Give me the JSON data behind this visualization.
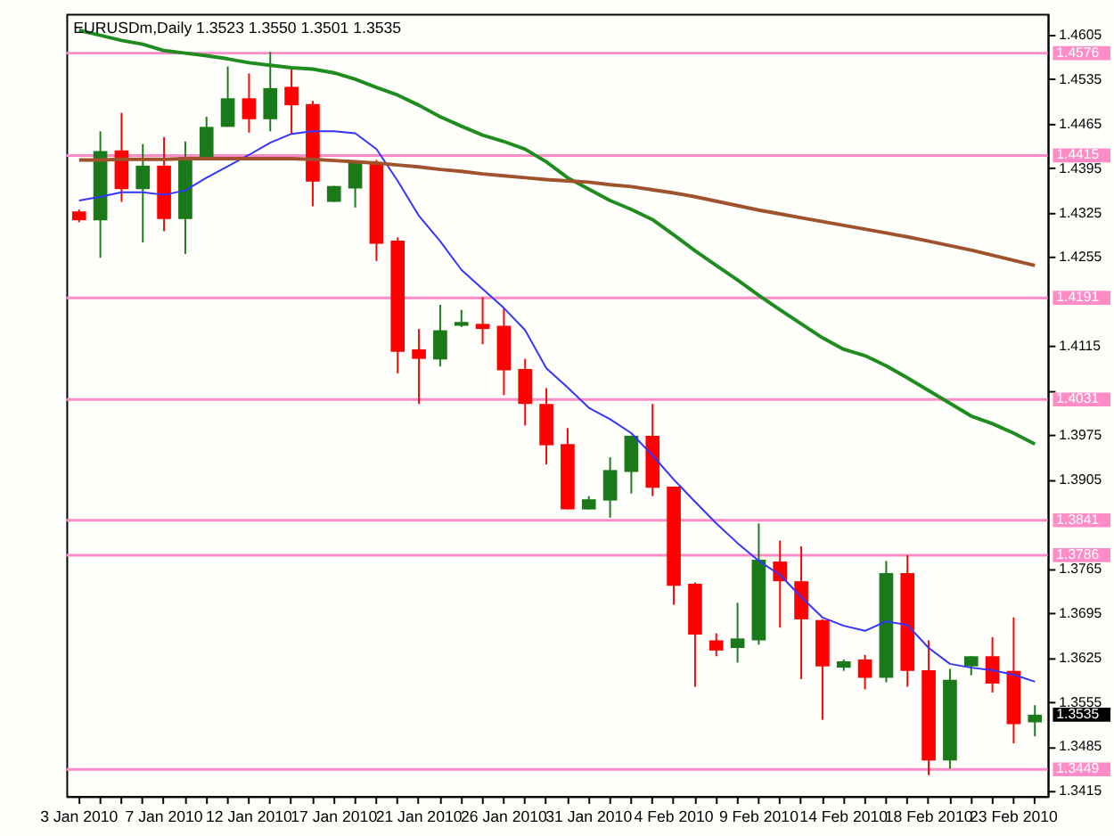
{
  "chart_data": {
    "type": "candlestick",
    "title": "EURUSDm,Daily  1.3523 1.3550 1.3501 1.3535",
    "categories": [
      "3 Jan 2010",
      null,
      null,
      null,
      "7 Jan 2010",
      null,
      null,
      null,
      "12 Jan 2010",
      null,
      null,
      null,
      "17 Jan 2010",
      null,
      null,
      null,
      "21 Jan 2010",
      null,
      null,
      null,
      "26 Jan 2010",
      null,
      null,
      null,
      "31 Jan 2010",
      null,
      null,
      null,
      "4 Feb 2010",
      null,
      null,
      null,
      "9 Feb 2010",
      null,
      null,
      null,
      "14 Feb 2010",
      null,
      null,
      null,
      "18 Feb 2010",
      null,
      null,
      null,
      "23 Feb 2010",
      null
    ],
    "ohlc": [
      [
        1.4327,
        1.433,
        1.431,
        1.4313
      ],
      [
        1.4313,
        1.4453,
        1.4254,
        1.4422
      ],
      [
        1.4423,
        1.4482,
        1.4342,
        1.4362
      ],
      [
        1.4362,
        1.4433,
        1.4278,
        1.4399
      ],
      [
        1.4399,
        1.4444,
        1.4296,
        1.4315
      ],
      [
        1.4315,
        1.4437,
        1.426,
        1.4412
      ],
      [
        1.4412,
        1.4476,
        1.4412,
        1.446
      ],
      [
        1.446,
        1.4555,
        1.446,
        1.4505
      ],
      [
        1.4505,
        1.4544,
        1.4451,
        1.4472
      ],
      [
        1.4472,
        1.4578,
        1.4453,
        1.4521
      ],
      [
        1.4523,
        1.4555,
        1.4448,
        1.4494
      ],
      [
        1.4496,
        1.4501,
        1.4335,
        1.4374
      ],
      [
        1.4342,
        1.4367,
        1.4342,
        1.4367
      ],
      [
        1.4363,
        1.4405,
        1.4333,
        1.4405
      ],
      [
        1.4403,
        1.4408,
        1.4249,
        1.4276
      ],
      [
        1.4281,
        1.4286,
        1.4072,
        1.4106
      ],
      [
        1.411,
        1.4142,
        1.4024,
        1.4095
      ],
      [
        1.4094,
        1.418,
        1.4083,
        1.414
      ],
      [
        1.4147,
        1.4172,
        1.4145,
        1.4153
      ],
      [
        1.415,
        1.4192,
        1.4118,
        1.4142
      ],
      [
        1.4147,
        1.4174,
        1.4038,
        1.4077
      ],
      [
        1.4079,
        1.4095,
        1.399,
        1.4024
      ],
      [
        1.4024,
        1.4049,
        1.3929,
        1.3959
      ],
      [
        1.3961,
        1.3986,
        1.3858,
        1.3858
      ],
      [
        1.3858,
        1.3879,
        1.3858,
        1.3874
      ],
      [
        1.3872,
        1.394,
        1.3845,
        1.392
      ],
      [
        1.3917,
        1.3974,
        1.3883,
        1.3974
      ],
      [
        1.3974,
        1.4024,
        1.3879,
        1.3892
      ],
      [
        1.3894,
        1.3894,
        1.3708,
        1.3738
      ],
      [
        1.3741,
        1.3743,
        1.3579,
        1.3661
      ],
      [
        1.3652,
        1.3663,
        1.3627,
        1.3636
      ],
      [
        1.364,
        1.3711,
        1.3617,
        1.3655
      ],
      [
        1.3652,
        1.3836,
        1.3645,
        1.3779
      ],
      [
        1.3776,
        1.3809,
        1.3672,
        1.3745
      ],
      [
        1.3745,
        1.38,
        1.3591,
        1.3685
      ],
      [
        1.3684,
        1.3685,
        1.3527,
        1.3611
      ],
      [
        1.3609,
        1.3622,
        1.3604,
        1.3619
      ],
      [
        1.3622,
        1.3629,
        1.3575,
        1.3593
      ],
      [
        1.3593,
        1.3777,
        1.3586,
        1.3758
      ],
      [
        1.3758,
        1.3786,
        1.3579,
        1.3604
      ],
      [
        1.3605,
        1.3652,
        1.344,
        1.3463
      ],
      [
        1.3463,
        1.3607,
        1.345,
        1.359
      ],
      [
        1.3611,
        1.3627,
        1.3597,
        1.3627
      ],
      [
        1.3627,
        1.3657,
        1.357,
        1.3584
      ],
      [
        1.3604,
        1.3688,
        1.349,
        1.352
      ],
      [
        1.3523,
        1.355,
        1.3501,
        1.3535
      ]
    ],
    "colors": [
      "#ff0000",
      "#1a7a1a",
      "#ff0000",
      "#1a7a1a",
      "#ff0000",
      "#1a7a1a",
      "#1a7a1a",
      "#1a7a1a",
      "#ff0000",
      "#1a7a1a",
      "#ff0000",
      "#ff0000",
      "#1a7a1a",
      "#1a7a1a",
      "#ff0000",
      "#ff0000",
      "#ff0000",
      "#1a7a1a",
      "#1a7a1a",
      "#ff0000",
      "#ff0000",
      "#ff0000",
      "#ff0000",
      "#ff0000",
      "#1a7a1a",
      "#1a7a1a",
      "#1a7a1a",
      "#ff0000",
      "#ff0000",
      "#ff0000",
      "#ff0000",
      "#1a7a1a",
      "#1a7a1a",
      "#ff0000",
      "#ff0000",
      "#ff0000",
      "#1a7a1a",
      "#ff0000",
      "#1a7a1a",
      "#ff0000",
      "#ff0000",
      "#1a7a1a",
      "#1a7a1a",
      "#ff0000",
      "#ff0000",
      "#1a7a1a"
    ],
    "series": [
      {
        "type": "line",
        "color": "#3333ff",
        "values": [
          1.4344,
          1.435,
          1.4357,
          1.4357,
          1.4353,
          1.436,
          1.438,
          1.4398,
          1.4416,
          1.4435,
          1.4449,
          1.4453,
          1.4453,
          1.445,
          1.4425,
          1.4375,
          1.432,
          1.428,
          1.4235,
          1.4205,
          1.4175,
          1.414,
          1.408,
          1.405,
          1.4018,
          1.4,
          1.3978,
          1.3943,
          1.3905,
          1.387,
          1.3836,
          1.3805,
          1.3777,
          1.3755,
          1.372,
          1.3688,
          1.3675,
          1.3667,
          1.3682,
          1.3676,
          1.364,
          1.3615,
          1.3609,
          1.3605,
          1.3598,
          1.3587
        ]
      },
      {
        "type": "line",
        "color": "#1e8c1e",
        "values": [
          1.4612,
          1.4604,
          1.4596,
          1.459,
          1.458,
          1.4576,
          1.4572,
          1.4567,
          1.4561,
          1.4557,
          1.4553,
          1.4551,
          1.4545,
          1.4535,
          1.4522,
          1.451,
          1.4494,
          1.4476,
          1.4461,
          1.4447,
          1.4437,
          1.4425,
          1.4405,
          1.438,
          1.4362,
          1.4344,
          1.433,
          1.4314,
          1.429,
          1.4265,
          1.4242,
          1.4219,
          1.4195,
          1.4172,
          1.415,
          1.4128,
          1.411,
          1.41,
          1.4084,
          1.4065,
          1.4045,
          1.4025,
          1.4005,
          1.3993,
          1.3978,
          1.3961
        ]
      },
      {
        "type": "line",
        "color": "#a0522d",
        "values": [
          1.4408,
          1.4408,
          1.4409,
          1.4409,
          1.4409,
          1.441,
          1.441,
          1.441,
          1.441,
          1.441,
          1.441,
          1.4409,
          1.4407,
          1.4405,
          1.4403,
          1.44,
          1.4397,
          1.4393,
          1.439,
          1.4386,
          1.4383,
          1.438,
          1.4377,
          1.4375,
          1.4373,
          1.4369,
          1.4366,
          1.4361,
          1.4356,
          1.435,
          1.4343,
          1.4336,
          1.4329,
          1.4323,
          1.4317,
          1.4311,
          1.4305,
          1.4299,
          1.4293,
          1.4287,
          1.428,
          1.4273,
          1.4266,
          1.4258,
          1.425,
          1.4242
        ]
      }
    ],
    "ylim": [
      1.3407,
      1.4638
    ],
    "yticks": [
      1.4605,
      1.4535,
      1.4465,
      1.4395,
      1.4325,
      1.4255,
      1.4115,
      {
        "value": 1.4045,
        "label": null
      },
      1.3975,
      1.3905,
      1.3765,
      1.3695,
      1.3625,
      1.3555,
      1.3485,
      1.3415
    ],
    "ref_lines": [
      {
        "axis": "y",
        "value": 1.4576,
        "label": "1.4576",
        "color": "#ff8cc6"
      },
      {
        "axis": "y",
        "value": 1.4415,
        "label": "1.4415",
        "color": "#ff8cc6"
      },
      {
        "axis": "y",
        "value": 1.4191,
        "label": "1.4191",
        "color": "#ff8cc6"
      },
      {
        "axis": "y",
        "value": 1.4031,
        "label": "1.4031",
        "color": "#ff8cc6"
      },
      {
        "axis": "y",
        "value": 1.3841,
        "label": "1.3841",
        "color": "#ff8cc6"
      },
      {
        "axis": "y",
        "value": 1.3786,
        "label": "1.3786",
        "color": "#ff8cc6"
      },
      {
        "axis": "y",
        "value": 1.3449,
        "label": "1.3449",
        "color": "#ff8cc6"
      }
    ],
    "annotations": [
      "1.3535"
    ],
    "grid": false
  }
}
